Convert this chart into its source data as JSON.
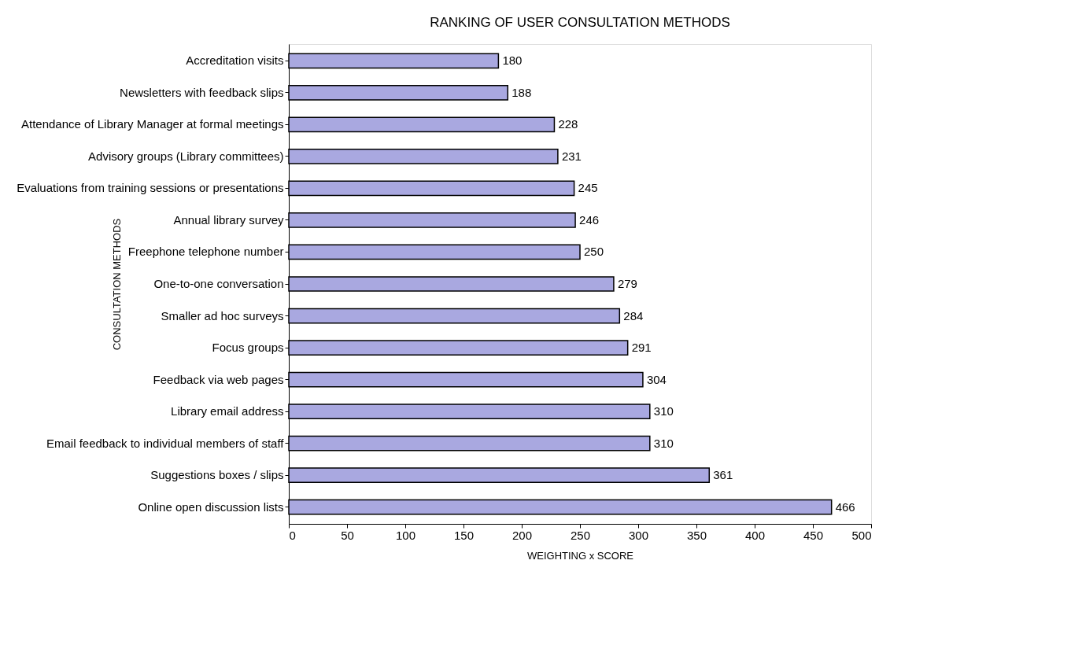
{
  "chart_data": {
    "type": "bar",
    "orientation": "horizontal",
    "title": "RANKING OF USER CONSULTATION METHODS",
    "xlabel": "WEIGHTING x SCORE",
    "ylabel": "CONSULTATION METHODS",
    "categories": [
      "Accreditation visits",
      "Newsletters with feedback slips",
      "Attendance of Library Manager at formal meetings",
      "Advisory groups (Library committees)",
      "Evaluations from training sessions or presentations",
      "Annual library survey",
      "Freephone telephone number",
      "One-to-one conversation",
      "Smaller ad hoc surveys",
      "Focus groups",
      "Feedback via web pages",
      "Library email address",
      "Email feedback to individual members of staff",
      "Suggestions boxes / slips",
      "Online open discussion lists"
    ],
    "values": [
      180,
      188,
      228,
      231,
      245,
      246,
      250,
      279,
      284,
      291,
      304,
      310,
      310,
      361,
      466
    ],
    "color": "#a9a8e0",
    "xlim": [
      0,
      500
    ],
    "xticks": [
      0,
      50,
      100,
      150,
      200,
      250,
      300,
      350,
      400,
      450,
      500
    ],
    "data_labels": true,
    "grid": false
  }
}
